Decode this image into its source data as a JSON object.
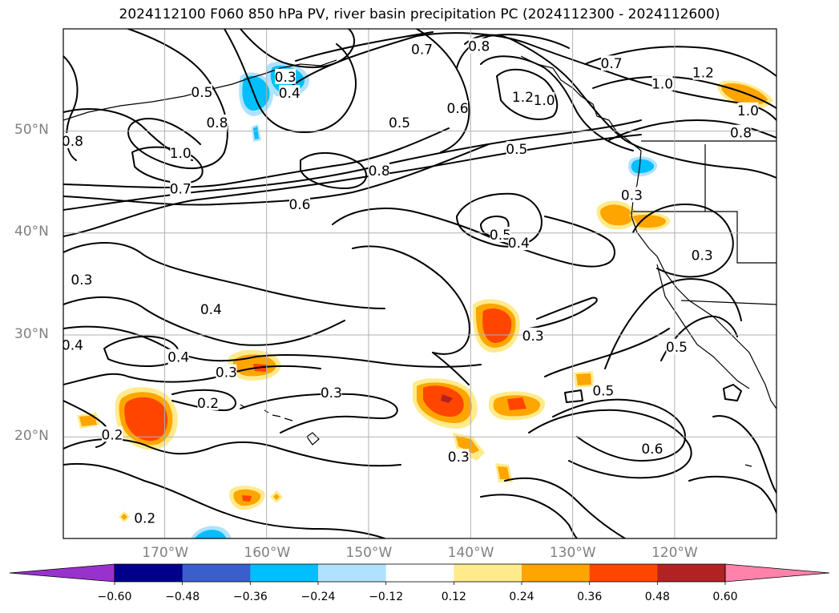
{
  "title": "2024112100 F060 850 hPa PV, river basin precipitation PC (2024112300 - 2024112600)",
  "map": {
    "lon_range": [
      -180,
      -110
    ],
    "lat_range": [
      10,
      60
    ],
    "lat_ticks": [
      {
        "value": 20,
        "label": "20°N"
      },
      {
        "value": 30,
        "label": "30°N"
      },
      {
        "value": 40,
        "label": "40°N"
      },
      {
        "value": 50,
        "label": "50°N"
      }
    ],
    "lon_ticks": [
      {
        "value": -170,
        "label": "170°W"
      },
      {
        "value": -160,
        "label": "160°W"
      },
      {
        "value": -150,
        "label": "150°W"
      },
      {
        "value": -140,
        "label": "140°W"
      },
      {
        "value": -130,
        "label": "130°W"
      },
      {
        "value": -120,
        "label": "120°W"
      }
    ],
    "gridlines": true,
    "contour_labels": [
      {
        "text": "0.3",
        "lon": -158.2,
        "lat": 55.3
      },
      {
        "text": "0.4",
        "lon": -157.8,
        "lat": 53.7
      },
      {
        "text": "0.5",
        "lon": -166.4,
        "lat": 53.8
      },
      {
        "text": "0.8",
        "lon": -164.9,
        "lat": 50.8
      },
      {
        "text": "0.8",
        "lon": -179.1,
        "lat": 49.0
      },
      {
        "text": "1.0",
        "lon": -168.5,
        "lat": 47.8
      },
      {
        "text": "0.7",
        "lon": -168.5,
        "lat": 44.3
      },
      {
        "text": "0.6",
        "lon": -156.8,
        "lat": 42.8
      },
      {
        "text": "0.8",
        "lon": -149.0,
        "lat": 46.1
      },
      {
        "text": "0.5",
        "lon": -147.0,
        "lat": 50.8
      },
      {
        "text": "0.7",
        "lon": -144.8,
        "lat": 58.0
      },
      {
        "text": "0.6",
        "lon": -141.3,
        "lat": 52.2
      },
      {
        "text": "0.8",
        "lon": -139.2,
        "lat": 58.3
      },
      {
        "text": "1.2",
        "lon": -134.9,
        "lat": 53.3
      },
      {
        "text": "1.0",
        "lon": -132.8,
        "lat": 53.0
      },
      {
        "text": "0.5",
        "lon": -135.5,
        "lat": 48.2
      },
      {
        "text": "0.7",
        "lon": -126.2,
        "lat": 56.6
      },
      {
        "text": "1.0",
        "lon": -121.2,
        "lat": 54.6
      },
      {
        "text": "1.2",
        "lon": -117.2,
        "lat": 55.7
      },
      {
        "text": "0.8",
        "lon": -113.5,
        "lat": 49.8
      },
      {
        "text": "1.0",
        "lon": -112.8,
        "lat": 52.0
      },
      {
        "text": "0.3",
        "lon": -124.2,
        "lat": 43.7
      },
      {
        "text": "0.5",
        "lon": -137.1,
        "lat": 39.8
      },
      {
        "text": "0.4",
        "lon": -135.3,
        "lat": 39.0
      },
      {
        "text": "0.3",
        "lon": -117.3,
        "lat": 37.8
      },
      {
        "text": "0.3",
        "lon": -178.2,
        "lat": 35.4
      },
      {
        "text": "0.4",
        "lon": -165.5,
        "lat": 32.5
      },
      {
        "text": "0.4",
        "lon": -179.1,
        "lat": 29.0
      },
      {
        "text": "0.4",
        "lon": -168.7,
        "lat": 27.8
      },
      {
        "text": "0.3",
        "lon": -164.0,
        "lat": 26.3
      },
      {
        "text": "0.3",
        "lon": -153.7,
        "lat": 24.3
      },
      {
        "text": "0.2",
        "lon": -165.8,
        "lat": 23.3
      },
      {
        "text": "0.2",
        "lon": -175.2,
        "lat": 20.2
      },
      {
        "text": "0.3",
        "lon": -133.9,
        "lat": 29.9
      },
      {
        "text": "0.5",
        "lon": -127.0,
        "lat": 24.5
      },
      {
        "text": "0.3",
        "lon": -141.2,
        "lat": 18.0
      },
      {
        "text": "0.6",
        "lon": -122.2,
        "lat": 18.8
      },
      {
        "text": "0.5",
        "lon": -119.8,
        "lat": 28.8
      },
      {
        "text": "0.2",
        "lon": -172.0,
        "lat": 12.0
      }
    ]
  },
  "colorbar": {
    "ticks": [
      "−0.60",
      "−0.48",
      "−0.36",
      "−0.24",
      "−0.12",
      "0.12",
      "0.24",
      "0.36",
      "0.48",
      "0.60"
    ],
    "colors": [
      "#9932cc",
      "#00008b",
      "#3a5fcd",
      "#00bfff",
      "#b0e2ff",
      "#ffffff",
      "#ffeb8c",
      "#ffa500",
      "#ff4500",
      "#b22222",
      "#ff82ab"
    ],
    "bounds": [
      -0.6,
      -0.48,
      -0.36,
      -0.24,
      -0.12,
      0.12,
      0.24,
      0.36,
      0.48,
      0.6
    ]
  }
}
